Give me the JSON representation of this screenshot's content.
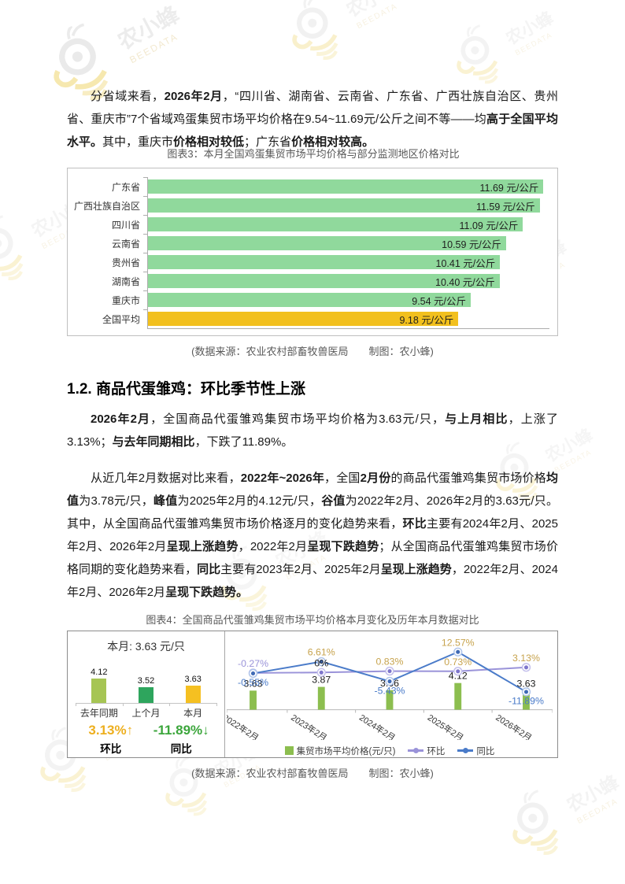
{
  "watermark": {
    "brand": "农小蜂",
    "brand_en": "BEEDATA"
  },
  "colors": {
    "bar_green": "#90D99C",
    "bar_gold": "#F2C01E",
    "mini_lastyear": "#A6C554",
    "mini_lastmonth": "#2EA55D",
    "mini_thismonth": "#F5C021",
    "up_gold": "#EDAF1F",
    "down_green": "#3CA63C",
    "trend_bar": "#8CBE4F",
    "huanbi_line": "#9A93D9",
    "tongbi_line": "#4A7BC9",
    "muted_text": "#595959"
  },
  "intro": {
    "segments": [
      {
        "t": "分省域来看，",
        "b": false
      },
      {
        "t": "2026年2月",
        "b": true
      },
      {
        "t": "，“四川省、湖南省、云南省、广东省、广西壮族自治区、贵州省、重庆市”7个省域鸡蛋集贸市场平均价格在9.54~11.69元/公斤之间不等——均",
        "b": false
      },
      {
        "t": "高于全国平均水平。",
        "b": true
      },
      {
        "t": "其中，重庆市",
        "b": false
      },
      {
        "t": "价格相对较低",
        "b": true
      },
      {
        "t": "；广东省",
        "b": false
      },
      {
        "t": "价格相对较高。",
        "b": true
      }
    ]
  },
  "section": {
    "heading": "1.2. 商品代蛋雏鸡：环比季节性上涨"
  },
  "para_month": {
    "segments": [
      {
        "t": "2026年2月",
        "b": true
      },
      {
        "t": "，全国商品代蛋雏鸡集贸市场平均价格为3.63元/只，",
        "b": false
      },
      {
        "t": "与上月相比",
        "b": true
      },
      {
        "t": "，上涨了3.13%；",
        "b": false
      },
      {
        "t": "与去年同期相比",
        "b": true
      },
      {
        "t": "，下跌了11.89%。",
        "b": false
      }
    ]
  },
  "para_trend": {
    "segments": [
      {
        "t": "从近几年2月数据对比来看，",
        "b": false
      },
      {
        "t": "2022年~2026年",
        "b": true
      },
      {
        "t": "，全国",
        "b": false
      },
      {
        "t": "2月份",
        "b": true
      },
      {
        "t": "的商品代蛋雏鸡集贸市场价格",
        "b": false
      },
      {
        "t": "均值",
        "b": true
      },
      {
        "t": "为3.78元/只，",
        "b": false
      },
      {
        "t": "峰值",
        "b": true
      },
      {
        "t": "为2025年2月的4.12元/只，",
        "b": false
      },
      {
        "t": "谷值",
        "b": true
      },
      {
        "t": "为2022年2月、2026年2月的3.63元/只。其中，从全国商品代蛋雏鸡集贸市场价格逐月的变化趋势来看，",
        "b": false
      },
      {
        "t": "环比",
        "b": true
      },
      {
        "t": "主要有2024年2月、2025年2月、2026年2月",
        "b": false
      },
      {
        "t": "呈现上涨趋势",
        "b": true
      },
      {
        "t": "，2022年2月",
        "b": false
      },
      {
        "t": "呈现下跌趋势",
        "b": true
      },
      {
        "t": "；从全国商品代蛋雏鸡集贸市场价格同期的变化趋势来看，",
        "b": false
      },
      {
        "t": "同比",
        "b": true
      },
      {
        "t": "主要有2023年2月、2025年2月",
        "b": false
      },
      {
        "t": "呈现上涨趋势",
        "b": true
      },
      {
        "t": "，2022年2月、2024年2月、2026年2月",
        "b": false
      },
      {
        "t": "呈现下跌趋势。",
        "b": true
      }
    ]
  },
  "chart_data": [
    {
      "type": "bar",
      "orientation": "horizontal",
      "title": "图表3：本月全国鸡蛋集贸市场平均价格与部分监测地区价格对比",
      "unit": "元/公斤",
      "categories": [
        "广东省",
        "广西壮族自治区",
        "四川省",
        "云南省",
        "贵州省",
        "湖南省",
        "重庆市",
        "全国平均"
      ],
      "values": [
        11.69,
        11.59,
        11.09,
        10.59,
        10.41,
        10.4,
        9.54,
        9.18
      ],
      "value_labels": [
        "11.69",
        "11.59",
        "11.09",
        "10.59",
        "10.41",
        "10.40",
        "9.54",
        "9.18"
      ],
      "highlight_category": "全国平均",
      "xlim": [
        0,
        11.87
      ],
      "grid": false,
      "source_note": "(数据来源：农业农村部畜牧兽医局　　制图：农小蜂)"
    },
    {
      "type": "bar+line",
      "title": "图表4：全国商品代蛋雏鸡集贸市场平均价格本月变化及历年本月数据对比",
      "summary": {
        "title": "本月: 3.63 元/只",
        "bars": [
          {
            "label": "去年同期",
            "value": 4.12,
            "value_label": "4.12",
            "color_key": "mini_lastyear"
          },
          {
            "label": "上个月",
            "value": 3.52,
            "value_label": "3.52",
            "color_key": "mini_lastmonth"
          },
          {
            "label": "本月",
            "value": 3.63,
            "value_label": "3.63",
            "color_key": "mini_thismonth"
          }
        ],
        "metrics": [
          {
            "name": "环比",
            "value": "3.13%↑",
            "direction": "up"
          },
          {
            "name": "同比",
            "value": "-11.89%↓",
            "direction": "down"
          }
        ]
      },
      "categories": [
        "2022年2月",
        "2023年2月",
        "2024年2月",
        "2025年2月",
        "2026年2月"
      ],
      "series": [
        {
          "name": "集贸市场平均价格(元/只)",
          "type": "bar",
          "values": [
            3.63,
            3.87,
            3.66,
            4.12,
            3.63
          ],
          "labels": [
            "3.63",
            "3.87",
            "3.66",
            "4.12",
            "3.63"
          ]
        },
        {
          "name": "环比",
          "type": "line",
          "values": [
            -0.27,
            0,
            0.83,
            0.73,
            3.13
          ],
          "labels": [
            "-0.27%",
            "0%",
            "0.83%",
            "0.73%",
            "3.13%"
          ],
          "label_colors": [
            "#9A93D9",
            "#1a1a1a",
            "#C7A34D",
            "#C7A34D",
            "#C7A34D"
          ]
        },
        {
          "name": "同比",
          "type": "line",
          "values": [
            -0.55,
            6.61,
            -5.43,
            12.57,
            -11.89
          ],
          "labels": [
            "-0.55%",
            "6.61%",
            "-5.43%",
            "12.57%",
            "-11.89%"
          ],
          "label_colors": [
            "#4A7BC9",
            "#C7A34D",
            "#4A7BC9",
            "#C7A34D",
            "#4A7BC9"
          ]
        }
      ],
      "legend_position": "bottom",
      "source_note": "(数据来源：农业农村部畜牧兽医局　　制图：农小蜂)"
    }
  ]
}
